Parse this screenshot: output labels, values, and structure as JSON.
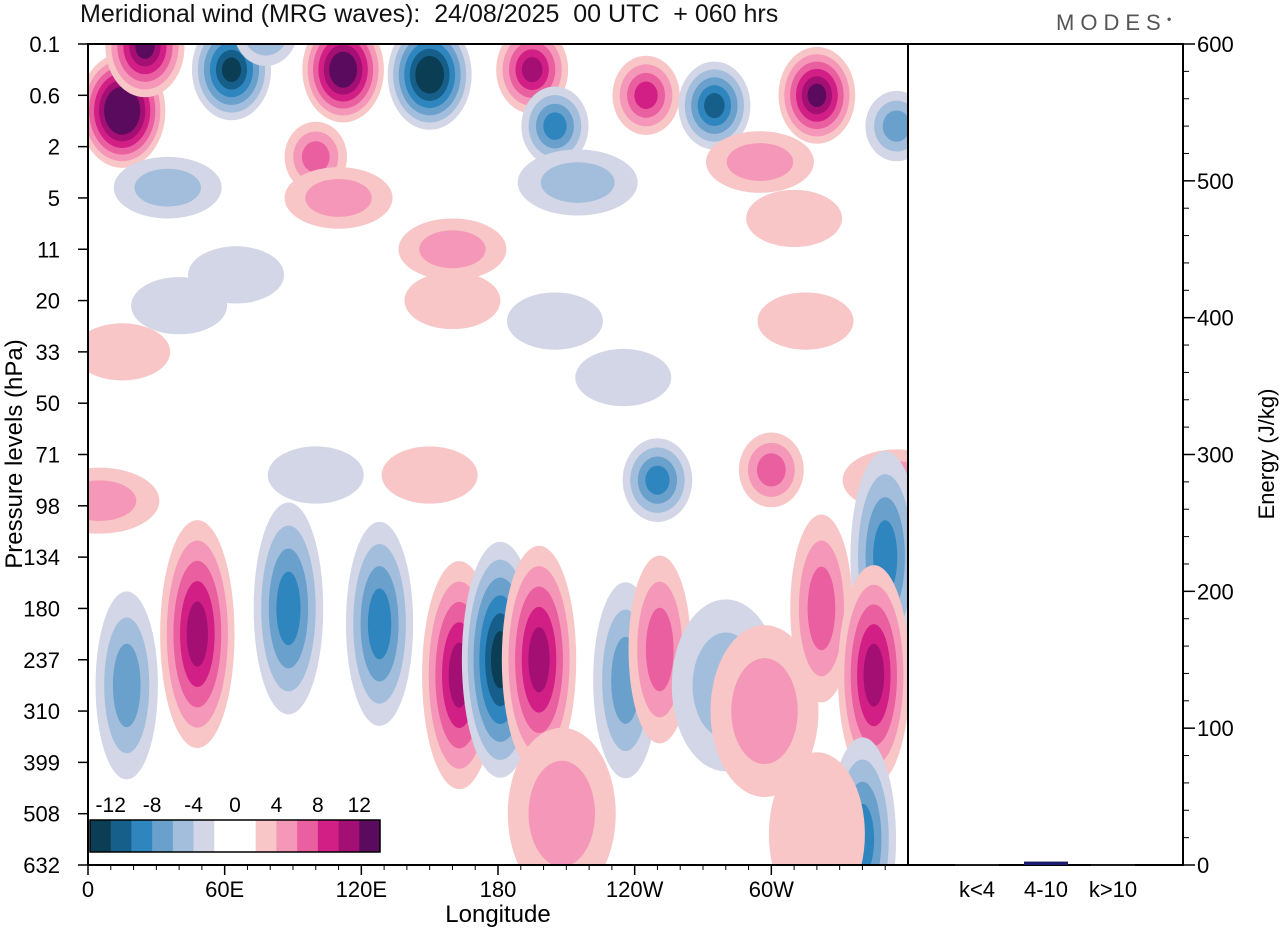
{
  "title": "Meridional wind (MRG waves):  24/08/2025  00 UTC  + 060 hrs",
  "logo": "MODES",
  "colors": {
    "neg": [
      "#0b3d55",
      "#155f8a",
      "#2f86bf",
      "#6aa0cc",
      "#a3bedc",
      "#d2d6e6"
    ],
    "zero": "#ffffff",
    "pos": [
      "#f8c6c6",
      "#f597b8",
      "#ea5f9f",
      "#d11f86",
      "#a30f72",
      "#5b0b5e"
    ]
  },
  "chart_data": [
    {
      "type": "heatmap",
      "title": "Meridional wind (MRG waves)",
      "xlabel": "Longitude",
      "ylabel": "Pressure levels (hPa)",
      "x_ticks": [
        "0",
        "60E",
        "120E",
        "180",
        "120W",
        "60W"
      ],
      "x_tick_values": [
        0,
        60,
        120,
        180,
        240,
        300
      ],
      "xlim": [
        0,
        360
      ],
      "y_ticks": [
        "0.1",
        "0.6",
        "2",
        "5",
        "11",
        "20",
        "33",
        "50",
        "71",
        "98",
        "134",
        "180",
        "237",
        "310",
        "399",
        "508",
        "632"
      ],
      "colorbar_ticks": [
        "-12",
        "-8",
        "-4",
        "0",
        "4",
        "8",
        "12"
      ],
      "colorbar_levels": [
        -14,
        -12,
        -10,
        -8,
        -6,
        -4,
        -2,
        2,
        4,
        6,
        8,
        10,
        12,
        14
      ],
      "blobs": [
        {
          "lon": 15,
          "lev": 1.3,
          "v": 16
        },
        {
          "lon": 25,
          "lev": 0.05,
          "v": 13
        },
        {
          "lon": 63,
          "lev": 0.5,
          "v": -13
        },
        {
          "lon": 78,
          "lev": -0.3,
          "v": -7
        },
        {
          "lon": 112,
          "lev": 0.5,
          "v": 14
        },
        {
          "lon": 150,
          "lev": 0.6,
          "v": -15
        },
        {
          "lon": 195,
          "lev": 0.5,
          "v": 10
        },
        {
          "lon": 100,
          "lev": 2.2,
          "v": 6
        },
        {
          "lon": 245,
          "lev": 1.0,
          "v": 8
        },
        {
          "lon": 275,
          "lev": 1.2,
          "v": -10
        },
        {
          "lon": 320,
          "lev": 1.0,
          "v": 12
        },
        {
          "lon": 355,
          "lev": 1.6,
          "v": -6
        },
        {
          "lon": 205,
          "lev": 1.6,
          "v": -8
        },
        {
          "lon": 215,
          "lev": 2.7,
          "v": -5
        },
        {
          "lon": 35,
          "lev": 2.8,
          "v": -4
        },
        {
          "lon": 295,
          "lev": 2.3,
          "v": 4
        },
        {
          "lon": 160,
          "lev": 4.0,
          "v": 4
        },
        {
          "lon": 110,
          "lev": 3.0,
          "v": 4
        },
        {
          "lon": 310,
          "lev": 3.4,
          "v": 3
        },
        {
          "lon": 65,
          "lev": 4.5,
          "v": -3
        },
        {
          "lon": 40,
          "lev": 5.1,
          "v": -3
        },
        {
          "lon": 160,
          "lev": 5.0,
          "v": 3
        },
        {
          "lon": 205,
          "lev": 5.4,
          "v": -3
        },
        {
          "lon": 235,
          "lev": 6.5,
          "v": -3
        },
        {
          "lon": 315,
          "lev": 5.4,
          "v": 3
        },
        {
          "lon": 15,
          "lev": 6.0,
          "v": 3
        },
        {
          "lon": 100,
          "lev": 8.4,
          "v": -3
        },
        {
          "lon": 150,
          "lev": 8.4,
          "v": 3
        },
        {
          "lon": 5,
          "lev": 8.9,
          "v": 5
        },
        {
          "lon": 250,
          "lev": 8.5,
          "v": -9
        },
        {
          "lon": 300,
          "lev": 8.3,
          "v": 7
        },
        {
          "lon": 355,
          "lev": 8.5,
          "v": 4
        },
        {
          "lon": 350,
          "lev": 10.0,
          "v": -9
        },
        {
          "lon": 48,
          "lev": 11.5,
          "v": 11
        },
        {
          "lon": 17,
          "lev": 12.5,
          "v": -6
        },
        {
          "lon": 88,
          "lev": 11.0,
          "v": -9
        },
        {
          "lon": 128,
          "lev": 11.3,
          "v": -8
        },
        {
          "lon": 163,
          "lev": 12.3,
          "v": 11
        },
        {
          "lon": 181,
          "lev": 12.0,
          "v": -12
        },
        {
          "lon": 198,
          "lev": 12.0,
          "v": 11
        },
        {
          "lon": 236,
          "lev": 12.4,
          "v": -7
        },
        {
          "lon": 251,
          "lev": 11.8,
          "v": 6
        },
        {
          "lon": 280,
          "lev": 12.5,
          "v": -4
        },
        {
          "lon": 297,
          "lev": 13.0,
          "v": 4
        },
        {
          "lon": 322,
          "lev": 11.0,
          "v": 6
        },
        {
          "lon": 345,
          "lev": 12.3,
          "v": 10
        },
        {
          "lon": 340,
          "lev": 15.5,
          "v": -8
        },
        {
          "lon": 208,
          "lev": 15.0,
          "v": 4
        },
        {
          "lon": 320,
          "lev": 15.4,
          "v": 3
        }
      ]
    },
    {
      "type": "bar",
      "ylabel": "Energy (J/kg)",
      "categories": [
        "k<4",
        "4-10",
        "k>10"
      ],
      "values": [
        0.4,
        2.5,
        0.3
      ],
      "ylim": [
        0,
        600
      ],
      "y_ticks": [
        0,
        100,
        200,
        300,
        400,
        500,
        600
      ]
    }
  ]
}
